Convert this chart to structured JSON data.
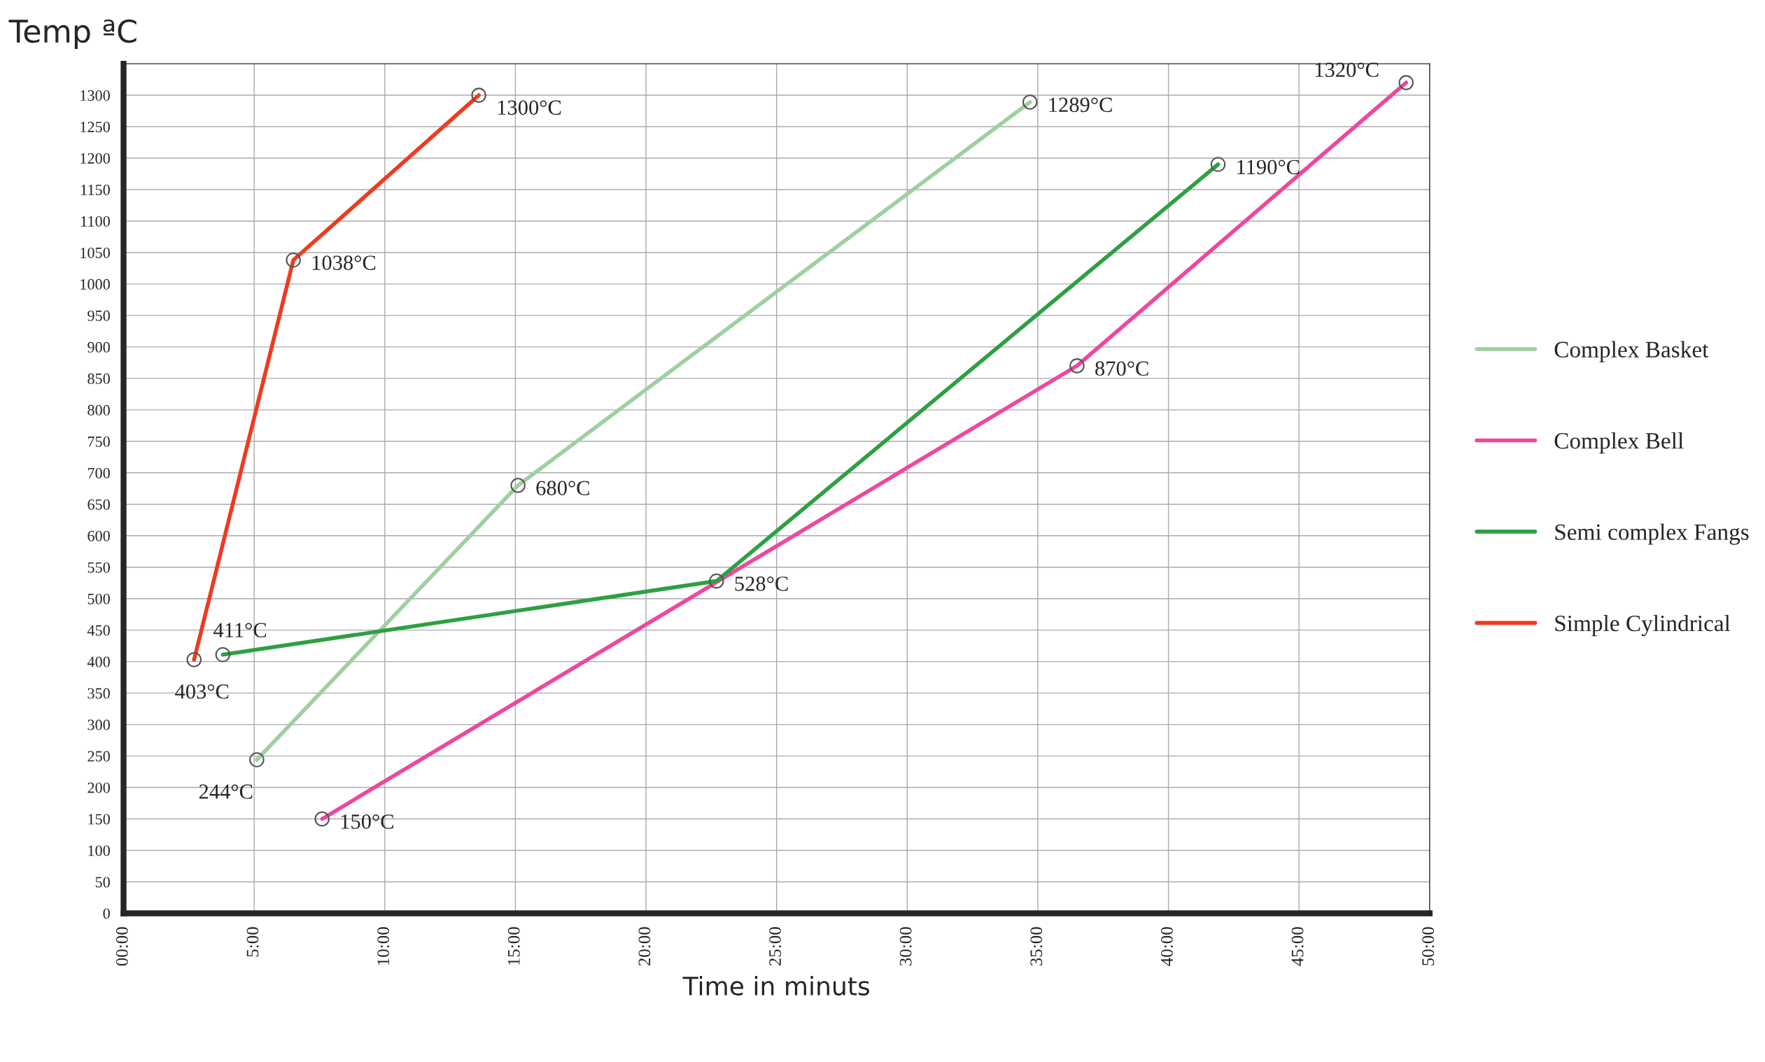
{
  "chart_data": {
    "type": "line",
    "xlabel": "Time in minuts",
    "ylabel": "Temp ªC",
    "xlim": [
      0,
      50
    ],
    "ylim": [
      0,
      1350
    ],
    "xticks": [
      {
        "value": 0,
        "label": "00:00"
      },
      {
        "value": 5,
        "label": "5:00"
      },
      {
        "value": 10,
        "label": "10:00"
      },
      {
        "value": 15,
        "label": "15:00"
      },
      {
        "value": 20,
        "label": "20:00"
      },
      {
        "value": 25,
        "label": "25:00"
      },
      {
        "value": 30,
        "label": "30:00"
      },
      {
        "value": 35,
        "label": "35:00"
      },
      {
        "value": 40,
        "label": "40:00"
      },
      {
        "value": 45,
        "label": "45:00"
      },
      {
        "value": 50,
        "label": "50:00"
      }
    ],
    "yticks": [
      0,
      50,
      100,
      150,
      200,
      250,
      300,
      350,
      400,
      450,
      500,
      550,
      600,
      650,
      700,
      750,
      800,
      850,
      900,
      950,
      1000,
      1050,
      1100,
      1150,
      1200,
      1250,
      1300
    ],
    "series": [
      {
        "name": "Complex Basket",
        "color": "#9fd09f",
        "x": [
          5.1,
          15.1,
          34.7
        ],
        "values": [
          244,
          680,
          1289
        ]
      },
      {
        "name": "Complex Bell",
        "color": "#f0469e",
        "x": [
          7.6,
          36.5,
          49.1
        ],
        "values": [
          150,
          870,
          1320
        ]
      },
      {
        "name": "Semi complex Fangs",
        "color": "#2ea043",
        "x": [
          3.8,
          22.7,
          41.9
        ],
        "values": [
          411,
          528,
          1190
        ]
      },
      {
        "name": "Simple Cylindrical",
        "color": "#f03a1f",
        "x": [
          2.7,
          6.5,
          13.6
        ],
        "values": [
          403,
          1038,
          1300
        ]
      }
    ],
    "annotations": [
      {
        "text": "244°C",
        "x": 5.1,
        "y": 244
      },
      {
        "text": "680°C",
        "x": 15.1,
        "y": 680
      },
      {
        "text": "1289°C",
        "x": 34.7,
        "y": 1289
      },
      {
        "text": "150°C",
        "x": 7.6,
        "y": 150
      },
      {
        "text": "870°C",
        "x": 36.5,
        "y": 870
      },
      {
        "text": "1320°C",
        "x": 49.1,
        "y": 1320
      },
      {
        "text": "411°C",
        "x": 3.8,
        "y": 411
      },
      {
        "text": "528°C",
        "x": 22.7,
        "y": 528
      },
      {
        "text": "1190°C",
        "x": 41.9,
        "y": 1190
      },
      {
        "text": "403°C",
        "x": 2.7,
        "y": 403
      },
      {
        "text": "1038°C",
        "x": 6.5,
        "y": 1038
      },
      {
        "text": "1300°C",
        "x": 13.6,
        "y": 1300
      }
    ],
    "grid": true,
    "legend": "right",
    "marker": "circle",
    "line_style": "solid"
  }
}
